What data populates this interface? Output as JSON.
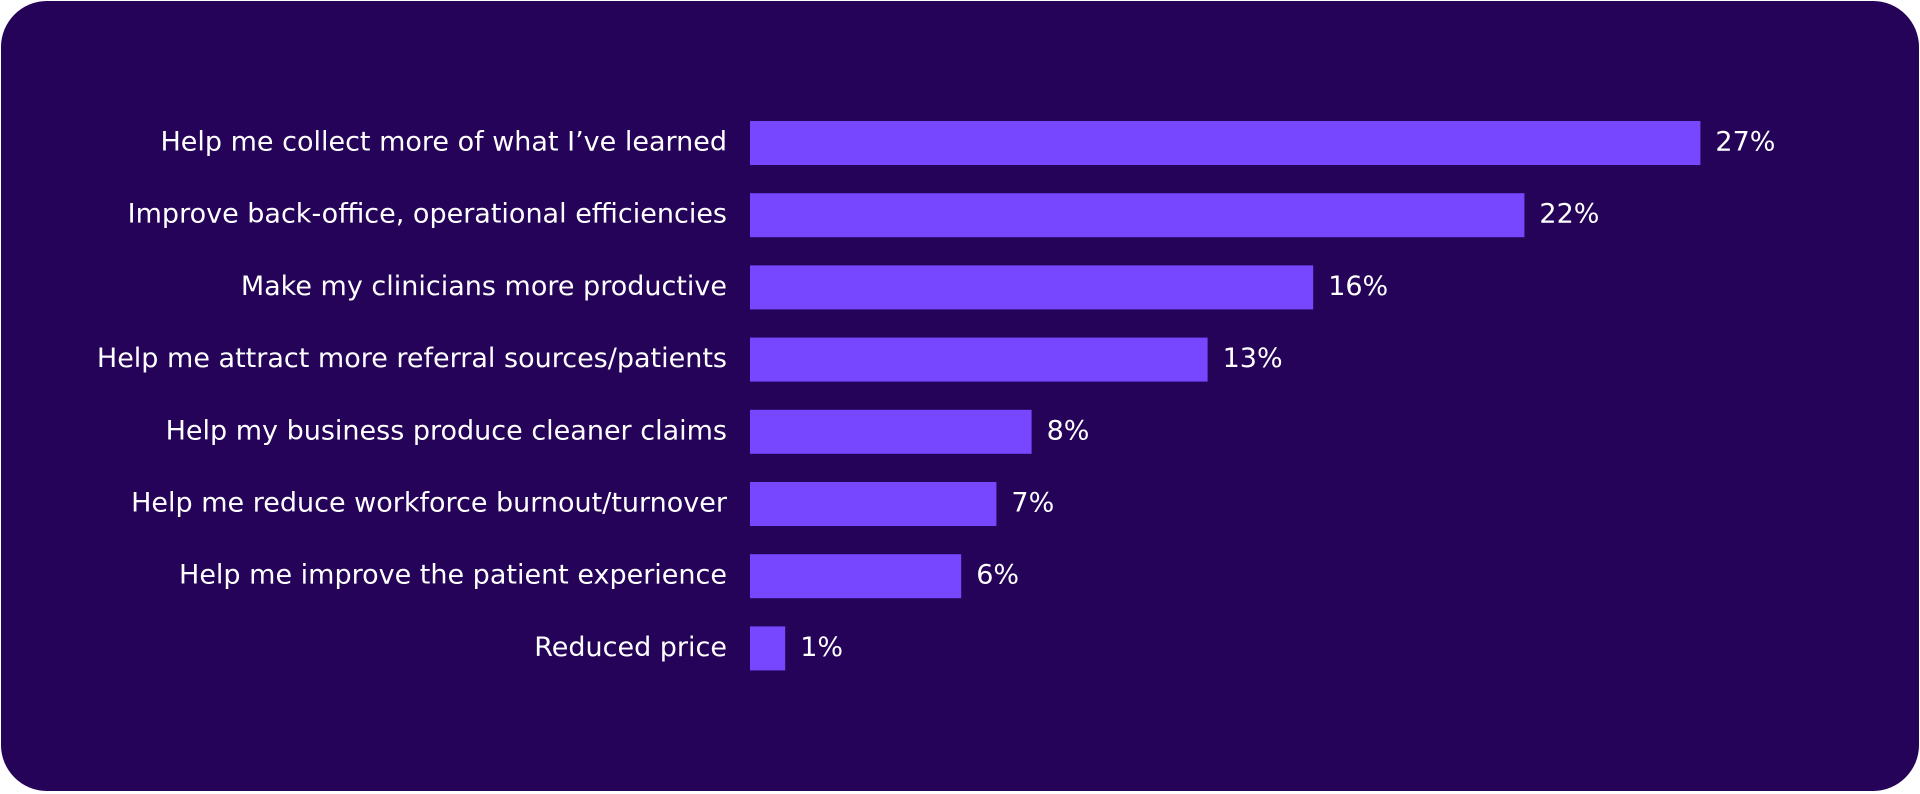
{
  "chart_data": {
    "type": "bar",
    "orientation": "horizontal",
    "categories": [
      "Help me collect more of what I’ve learned",
      "Improve back-office, operational efficiencies",
      "Make my clinicians more productive",
      "Help me attract more referral sources/patients",
      "Help my business produce cleaner claims",
      "Help me reduce workforce burnout/turnover",
      "Help me improve the patient experience",
      "Reduced price"
    ],
    "values": [
      27,
      22,
      16,
      13,
      8,
      7,
      6,
      1
    ],
    "value_labels": [
      "27%",
      "22%",
      "16%",
      "13%",
      "8%",
      "7%",
      "6%",
      "1%"
    ],
    "color": "#7647ff"
  }
}
